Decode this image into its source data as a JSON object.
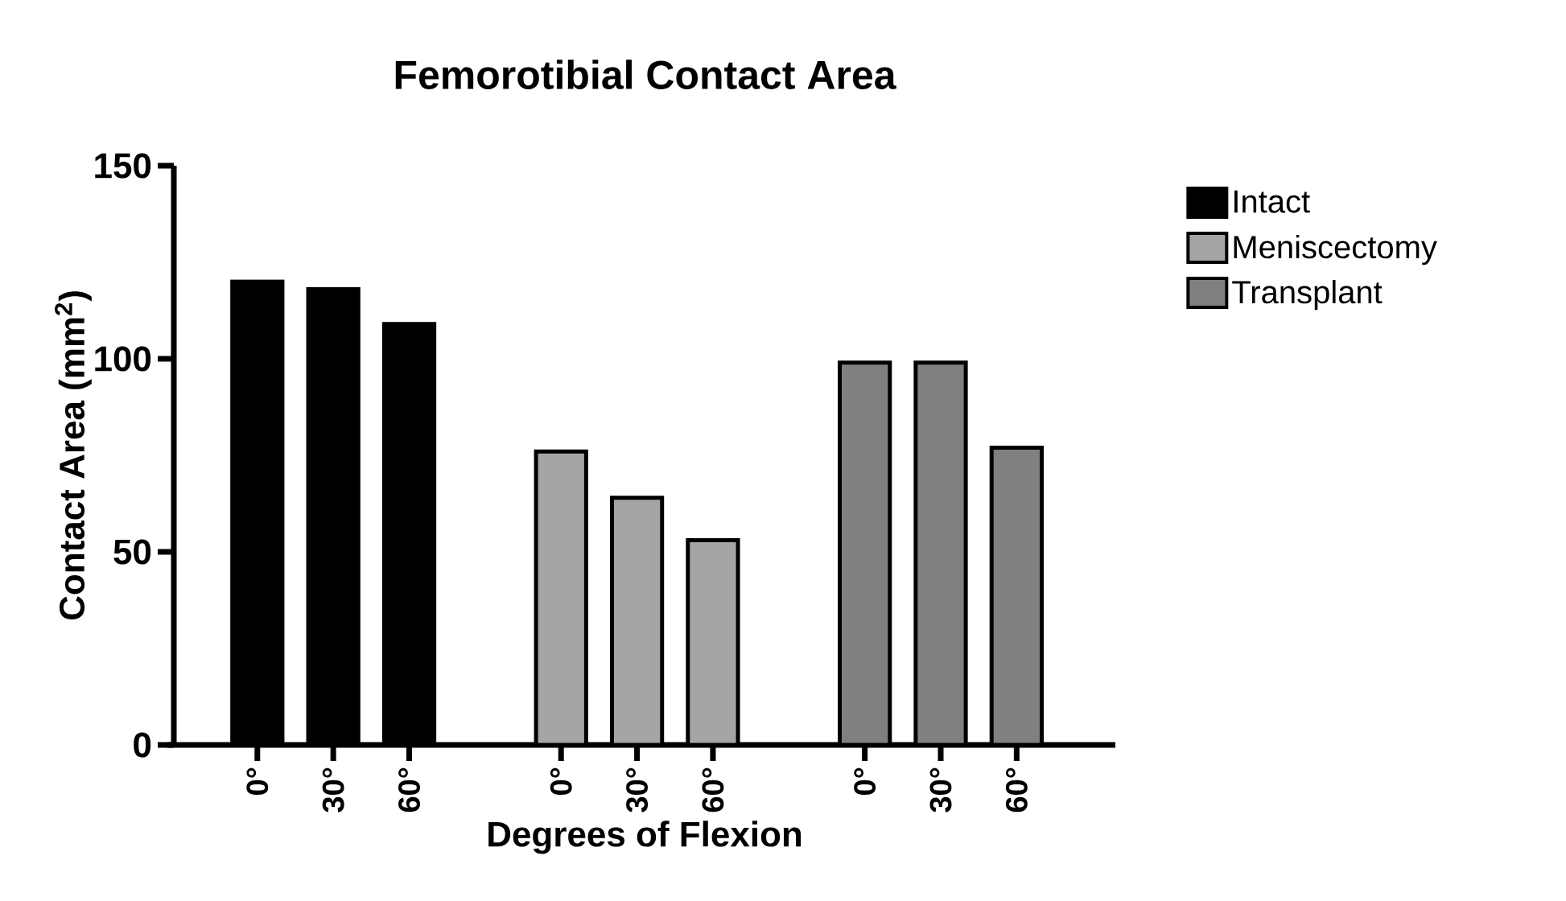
{
  "chart_data": {
    "type": "bar",
    "title": "Femorotibial Contact Area",
    "xlabel": "Degrees of Flexion",
    "ylabel": "Contact Area (mm$^{2}$)",
    "categories": [
      "0°",
      "30°",
      "60°",
      null,
      "0°",
      "30°",
      "60°",
      null,
      "0°",
      "30°",
      "60°"
    ],
    "series": [
      {
        "name": "Intact",
        "color": "#000000",
        "values": [
          120,
          118,
          109,
          null,
          null,
          null,
          null,
          null,
          null,
          null,
          null
        ]
      },
      {
        "name": "Meniscectomy",
        "color": "#a5a5a8",
        "values": [
          null,
          null,
          null,
          null,
          76,
          64,
          53,
          null,
          null,
          null,
          null
        ]
      },
      {
        "name": "Transplant",
        "color": "#808080",
        "values": [
          null,
          null,
          null,
          null,
          null,
          null,
          null,
          null,
          99,
          99,
          77
        ]
      }
    ],
    "ylim": [
      0,
      150
    ],
    "yticks": [
      0,
      50,
      100,
      150
    ],
    "legend": "top right"
  }
}
